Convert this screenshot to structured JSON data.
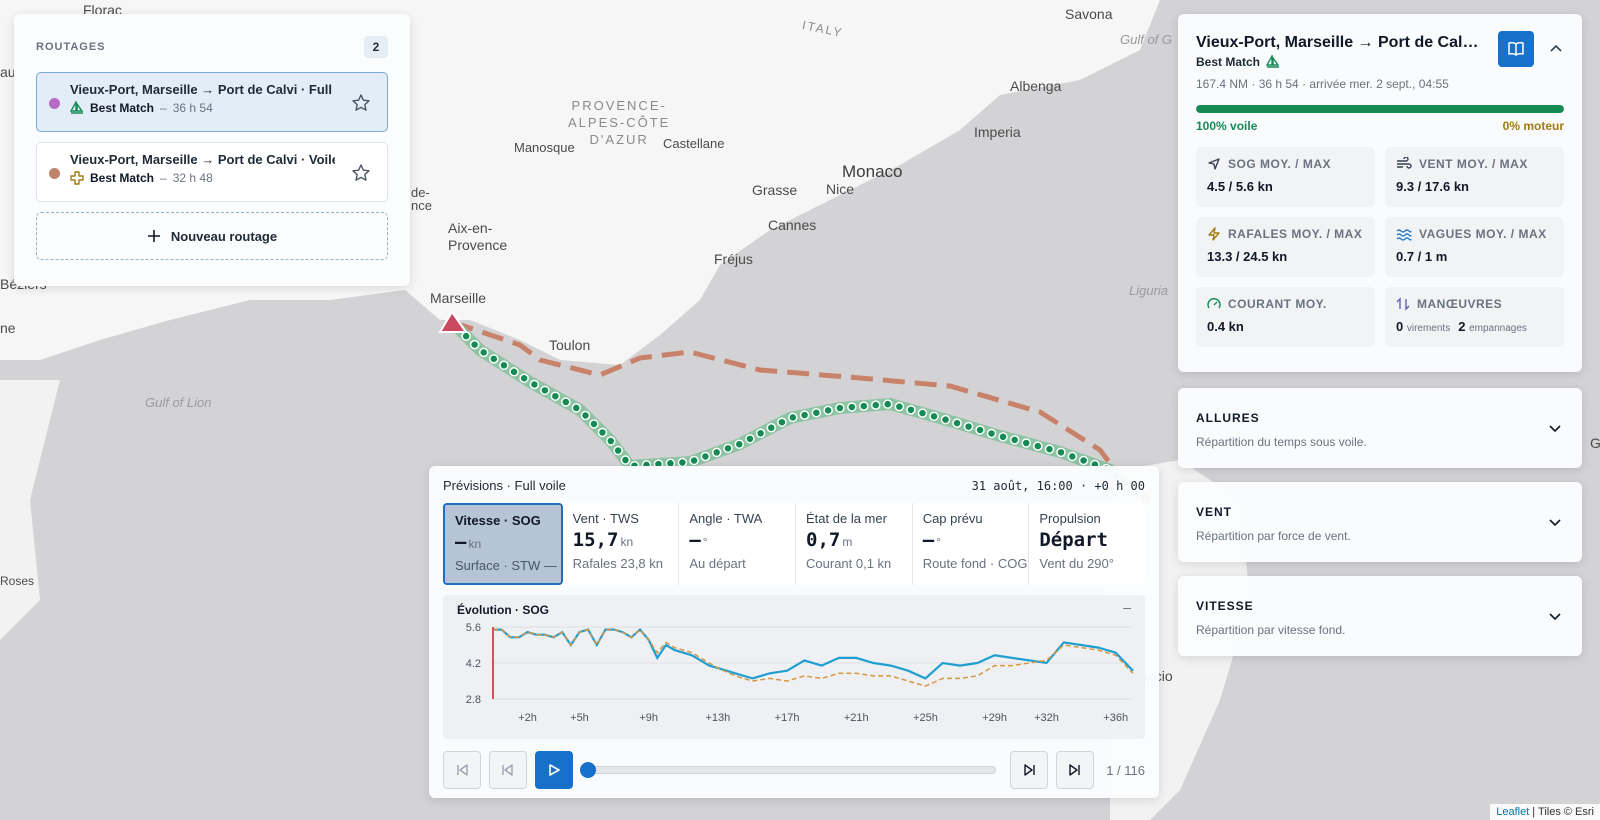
{
  "map": {
    "places": [
      {
        "name": "Florac"
      },
      {
        "name": "ITALY"
      },
      {
        "name": "Savona"
      },
      {
        "name": "Gulf of G"
      },
      {
        "name": "PROVENCE-\nALPES-CÔTE\nD'AZUR"
      },
      {
        "name": "Manosque"
      },
      {
        "name": "Castellane"
      },
      {
        "name": "Albenga"
      },
      {
        "name": "Imperia"
      },
      {
        "name": "Monaco"
      },
      {
        "name": "Grasse"
      },
      {
        "name": "Nice"
      },
      {
        "name": "Cannes"
      },
      {
        "name": "de-\nnce"
      },
      {
        "name": "Aix-en-\nProvence"
      },
      {
        "name": "Fréjus"
      },
      {
        "name": "Liguria"
      },
      {
        "name": "Béziers"
      },
      {
        "name": "ne"
      },
      {
        "name": "Marseille"
      },
      {
        "name": "Toulon"
      },
      {
        "name": "Gulf of Lion"
      },
      {
        "name": "Roses"
      },
      {
        "name": "G"
      },
      {
        "name": "au"
      },
      {
        "name": "accio"
      }
    ],
    "attribution_link": "Leaflet",
    "attribution_rest": " | Tiles © Esri"
  },
  "routages": {
    "title": "ROUTAGES",
    "count": "2",
    "items": [
      {
        "name": "Vieux-Port, Marseille → Port de Calvi · Full voile",
        "badge": "Best Match",
        "dash": "–",
        "duration": "36 h 54",
        "color": "#b86bc5",
        "mode": "sail-icon"
      },
      {
        "name": "Vieux-Port, Marseille → Port de Calvi · Voile",
        "badge": "Best Match",
        "dash": "–",
        "duration": "32 h 48",
        "color": "#c0826b",
        "mode": "motor-icon"
      }
    ],
    "new_label": "Nouveau routage"
  },
  "detail": {
    "title": "Vieux-Port, Marseille → Port de Calvi · Full voile",
    "badge": "Best Match",
    "stats": "167.4 NM · 36 h 54 · arrivée mer. 2 sept., 04:55",
    "sail_share": 1.0,
    "sail_label": "100% voile",
    "motor_label": "0% moteur",
    "kpis": [
      {
        "label": "SOG MOY. / MAX",
        "value": "4.5 / 5.6 kn",
        "icon": "navigation-icon",
        "color": "#374151"
      },
      {
        "label": "VENT MOY. / MAX",
        "value": "9.3 / 17.6 kn",
        "icon": "wind-icon",
        "color": "#374151"
      },
      {
        "label": "RAFALES MOY. / MAX",
        "value": "13.3 / 24.5 kn",
        "icon": "gust-icon",
        "color": "#a17a10"
      },
      {
        "label": "VAGUES MOY. / MAX",
        "value": "0.7 / 1 m",
        "icon": "waves-icon",
        "color": "#2a7abf"
      },
      {
        "label": "COURANT MOY.",
        "value": "0.4 kn",
        "icon": "gauge-icon",
        "color": "#158a55"
      },
      {
        "label": "MANŒUVRES",
        "tacks": "0",
        "tacks_unit": "virements",
        "gybes": "2",
        "gybes_unit": "empannages",
        "icon": "maneuver-icon",
        "color": "#6b5fb5"
      }
    ]
  },
  "accordions": [
    {
      "title": "ALLURES",
      "desc": "Répartition du temps sous voile."
    },
    {
      "title": "VENT",
      "desc": "Répartition par force de vent."
    },
    {
      "title": "VITESSE",
      "desc": "Répartition par vitesse fond."
    }
  ],
  "forecast": {
    "title": "Prévisions · Full voile",
    "time": "31 août, 16:00 · +0 h 00",
    "tiles": [
      {
        "label": "Vitesse · SOG",
        "value": "—",
        "unit": "kn",
        "sub": "Surface · STW — kn"
      },
      {
        "label": "Vent · TWS",
        "value": "15,7",
        "unit": "kn",
        "sub": "Rafales 23,8 kn"
      },
      {
        "label": "Angle · TWA",
        "value": "—",
        "unit": "°",
        "sub": "Au départ"
      },
      {
        "label": "État de la mer",
        "value": "0,7",
        "unit": "m",
        "sub": "Courant 0,1 kn"
      },
      {
        "label": "Cap prévu",
        "value": "—",
        "unit": "°",
        "sub": "Route fond · COG — °"
      },
      {
        "label": "Propulsion",
        "value": "Départ",
        "unit": "",
        "sub": "Vent du 290°"
      }
    ],
    "chart_title": "Évolution · SOG",
    "collapse": "–",
    "counter": "1  /  116"
  },
  "chart_data": {
    "type": "line",
    "title": "Évolution · SOG",
    "xlabel": "",
    "ylabel": "",
    "ylim": [
      2.8,
      5.6
    ],
    "xlim": [
      0,
      37
    ],
    "yticks": [
      "5.6",
      "4.2",
      "2.8"
    ],
    "xticks": [
      {
        "x": 2,
        "label": "+2h"
      },
      {
        "x": 5,
        "label": "+5h"
      },
      {
        "x": 9,
        "label": "+9h"
      },
      {
        "x": 13,
        "label": "+13h"
      },
      {
        "x": 17,
        "label": "+17h"
      },
      {
        "x": 21,
        "label": "+21h"
      },
      {
        "x": 25,
        "label": "+25h"
      },
      {
        "x": 29,
        "label": "+29h"
      },
      {
        "x": 32,
        "label": "+32h"
      },
      {
        "x": 36,
        "label": "+36h"
      }
    ],
    "x": [
      0,
      0.5,
      1,
      1.5,
      2,
      2.5,
      3,
      3.5,
      4,
      4.5,
      5,
      5.5,
      6,
      6.5,
      7,
      7.5,
      8,
      8.5,
      9,
      9.5,
      10,
      10.5,
      11,
      11.5,
      12,
      12.5,
      13,
      14,
      15,
      16,
      17,
      18,
      19,
      20,
      21,
      22,
      23,
      24,
      25,
      26,
      27,
      28,
      29,
      30,
      31,
      32,
      33,
      34,
      35,
      36,
      37
    ],
    "series": [
      {
        "values": [
          5.5,
          5.5,
          5.2,
          5.2,
          5.4,
          5.3,
          5.3,
          5.2,
          5.4,
          4.9,
          5.4,
          5.5,
          4.9,
          5.5,
          5.5,
          5.4,
          5.2,
          5.5,
          5.1,
          4.4,
          4.9,
          4.7,
          4.6,
          4.5,
          4.3,
          4.1,
          4.0,
          3.8,
          3.6,
          3.8,
          3.9,
          4.3,
          4.1,
          4.4,
          4.4,
          4.2,
          4.1,
          3.9,
          3.6,
          4.2,
          4.1,
          4.2,
          4.5,
          4.4,
          4.3,
          4.2,
          5.0,
          4.9,
          4.8,
          4.6,
          3.9
        ],
        "color": "#1f9fd0",
        "style": "solid"
      },
      {
        "values": [
          5.5,
          5.5,
          5.2,
          5.2,
          5.4,
          5.3,
          5.3,
          5.2,
          5.4,
          4.9,
          5.4,
          5.5,
          4.9,
          5.5,
          5.5,
          5.4,
          5.2,
          5.5,
          5.1,
          4.6,
          5.0,
          4.8,
          4.7,
          4.6,
          4.4,
          4.2,
          4.0,
          3.7,
          3.5,
          3.6,
          3.5,
          3.7,
          3.6,
          3.8,
          3.8,
          3.7,
          3.7,
          3.5,
          3.3,
          3.6,
          3.6,
          3.7,
          4.1,
          4.1,
          4.2,
          4.3,
          4.9,
          4.8,
          4.7,
          4.5,
          3.8
        ],
        "color": "#d89645",
        "style": "dashed"
      }
    ]
  }
}
